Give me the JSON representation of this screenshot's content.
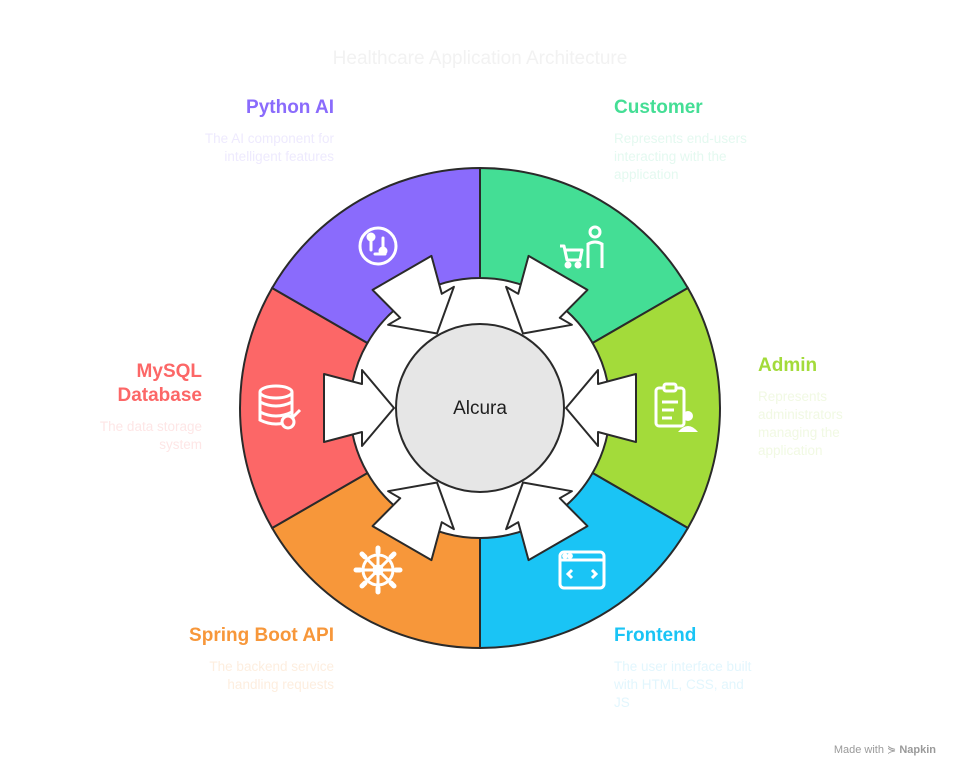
{
  "title": "Healthcare Application Architecture",
  "center_label": "Alcura",
  "segments": [
    {
      "key": "customer",
      "heading": "Customer",
      "description": "Represents end-users interacting with the application",
      "color": "#44DE95",
      "text_color": "#44DE95",
      "desc_color": "#E4F9F0",
      "icon": "shopping-cart-customer-icon"
    },
    {
      "key": "admin",
      "heading": "Admin",
      "description": "Represents administrators managing the application",
      "color": "#A3DB3A",
      "text_color": "#A3DB3A",
      "desc_color": "#F1F9E3",
      "icon": "clipboard-user-icon"
    },
    {
      "key": "frontend",
      "heading": "Frontend",
      "description": "The user interface built with HTML, CSS, and JS",
      "color": "#1AC4F5",
      "text_color": "#1AC4F5",
      "desc_color": "#E2F6FD",
      "icon": "browser-window-icon"
    },
    {
      "key": "springboot",
      "heading": "Spring Boot API",
      "description": "The backend service handling requests",
      "color": "#F7973A",
      "text_color": "#F7973A",
      "desc_color": "#FDEEDF",
      "icon": "gear-wheel-icon"
    },
    {
      "key": "mysql",
      "heading": "MySQL Database",
      "description": "The data storage system",
      "color": "#FC6767",
      "text_color": "#FC6767",
      "desc_color": "#FEE6E6",
      "icon": "database-icon"
    },
    {
      "key": "python",
      "heading": "Python AI",
      "description": "The AI component for intelligent features",
      "color": "#8A6BFC",
      "text_color": "#8A6BFC",
      "desc_color": "#EEEAFE",
      "icon": "ai-brain-circuit-icon"
    }
  ],
  "footer": {
    "prefix": "Made with",
    "brand": "Napkin"
  }
}
